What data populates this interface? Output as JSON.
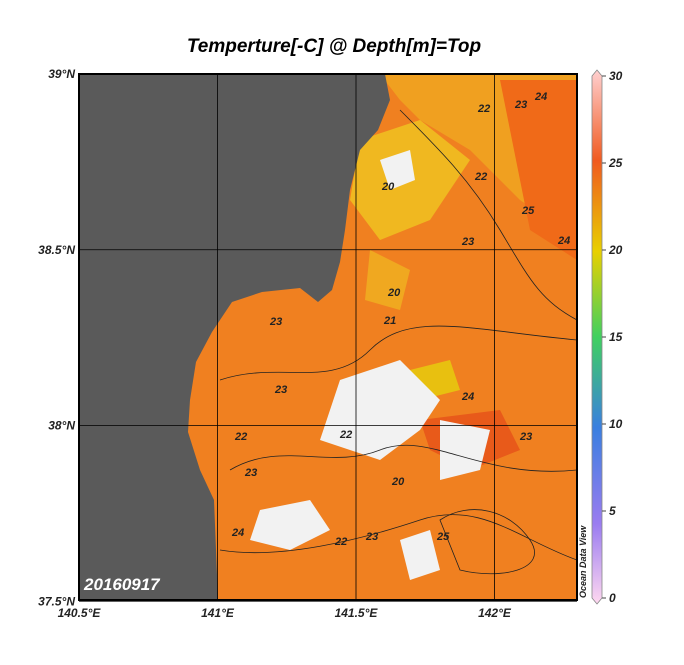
{
  "title": "Temperture[-C] @ Depth[m]=Top",
  "lon_ticks": [
    {
      "value": 140.5,
      "label": "140.5°E"
    },
    {
      "value": 141,
      "label": "141°E"
    },
    {
      "value": 141.5,
      "label": "141.5°E"
    },
    {
      "value": 142,
      "label": "142°E"
    }
  ],
  "lat_ticks": [
    {
      "value": 39,
      "label": "39°N"
    },
    {
      "value": 38.5,
      "label": "38.5°N"
    },
    {
      "value": 38,
      "label": "38°N"
    },
    {
      "value": 37.5,
      "label": "37.5°N"
    }
  ],
  "colorbar_ticks": [
    0,
    5,
    10,
    15,
    20,
    25,
    30
  ],
  "date": "20160917",
  "watermark": "Ocean Data View",
  "contour_labels": [
    "22",
    "23",
    "24",
    "20",
    "22",
    "23",
    "24",
    "25",
    "20",
    "21",
    "23",
    "23",
    "22",
    "23",
    "22",
    "24",
    "23",
    "22",
    "20",
    "25",
    "24",
    "23"
  ]
}
